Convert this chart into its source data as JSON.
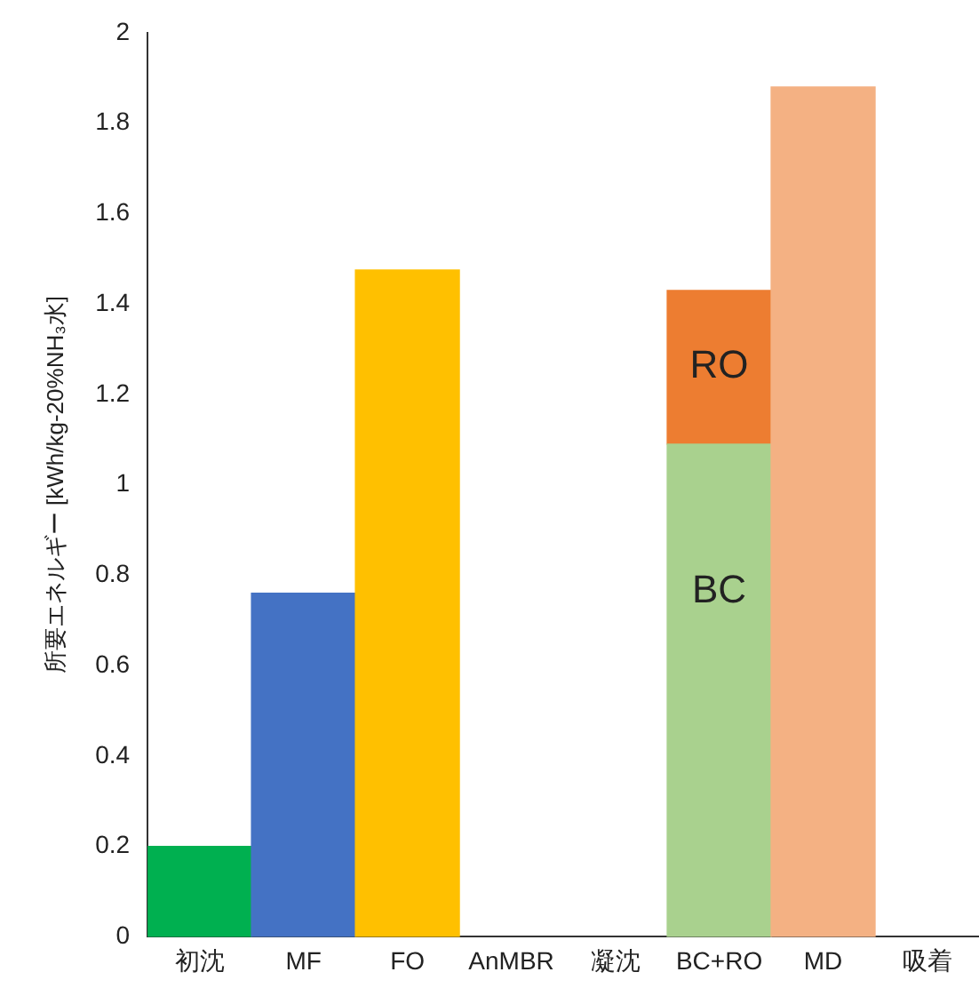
{
  "chart_data": {
    "type": "bar",
    "ylabel": "所要エネルギー [kWh/kg-20%NH₃水]",
    "categories": [
      "初沈",
      "MF",
      "FO",
      "AnMBR",
      "凝沈",
      "BC+RO",
      "MD",
      "吸着"
    ],
    "stacked": true,
    "legend": false,
    "grid": false,
    "ylim": [
      0,
      2
    ],
    "yticks": [
      0,
      0.2,
      0.4,
      0.6,
      0.8,
      1,
      1.2,
      1.4,
      1.6,
      1.8,
      2
    ],
    "series": [
      {
        "colors": [
          "#00b050",
          "#4472c4",
          "#ffc000",
          null,
          null,
          null,
          "#f4b183",
          null
        ],
        "values": [
          0.2,
          0.76,
          1.475,
          0,
          0,
          null,
          1.88,
          0
        ]
      },
      {
        "name": "BC",
        "color": "#a9d18e",
        "values": [
          null,
          null,
          null,
          null,
          null,
          1.09,
          null,
          null
        ]
      },
      {
        "name": "RO",
        "color": "#ed7d31",
        "values": [
          null,
          null,
          null,
          null,
          null,
          0.34,
          null,
          null
        ]
      }
    ]
  }
}
